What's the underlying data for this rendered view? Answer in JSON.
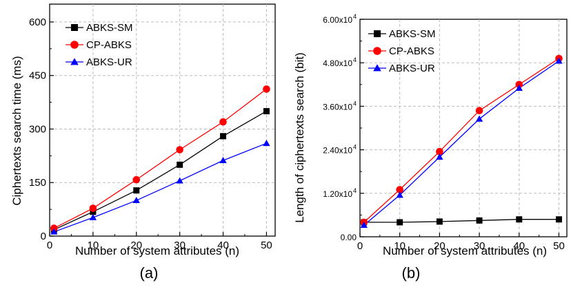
{
  "chart_data": [
    {
      "type": "line",
      "panel_label": "(a)",
      "xlabel": "Number of system attributes (n)",
      "ylabel": "Ciphertexts search time (ms)",
      "xlim": [
        0,
        52
      ],
      "ylim": [
        0,
        650
      ],
      "x_ticks": [
        {
          "value": 0,
          "label": "0"
        },
        {
          "value": 10,
          "label": "10"
        },
        {
          "value": 20,
          "label": "20"
        },
        {
          "value": 30,
          "label": "30"
        },
        {
          "value": 40,
          "label": "40"
        },
        {
          "value": 50,
          "label": "50"
        }
      ],
      "y_ticks": [
        {
          "value": 0,
          "label": "0"
        },
        {
          "value": 150,
          "label": "150"
        },
        {
          "value": 300,
          "label": "300"
        },
        {
          "value": 450,
          "label": "450"
        },
        {
          "value": 600,
          "label": "600"
        }
      ],
      "grid": true,
      "legend": "top-left",
      "x": [
        1,
        10,
        20,
        30,
        40,
        50
      ],
      "series": [
        {
          "name": "ABKS-SM",
          "color": "#000000",
          "marker": "square",
          "values": [
            18,
            68,
            128,
            200,
            280,
            350
          ]
        },
        {
          "name": "CP-ABKS",
          "color": "#ff0000",
          "marker": "circle",
          "values": [
            22,
            78,
            158,
            242,
            320,
            412
          ]
        },
        {
          "name": "ABKS-UR",
          "color": "#0000ff",
          "marker": "triangle",
          "values": [
            12,
            52,
            100,
            155,
            212,
            260
          ]
        }
      ]
    },
    {
      "type": "line",
      "panel_label": "(b)",
      "xlabel": "Number of system attributes (n)",
      "ylabel": "Length of ciphertexts search (bit)",
      "xlim": [
        0,
        52
      ],
      "ylim": [
        0,
        60000
      ],
      "x_ticks": [
        {
          "value": 0,
          "label": "0"
        },
        {
          "value": 10,
          "label": "10"
        },
        {
          "value": 20,
          "label": "20"
        },
        {
          "value": 30,
          "label": "30"
        },
        {
          "value": 40,
          "label": "40"
        },
        {
          "value": 50,
          "label": "50"
        }
      ],
      "y_ticks": [
        {
          "value": 0,
          "label": "0.00"
        },
        {
          "value": 12000,
          "label": "1.20x10",
          "exp": "4"
        },
        {
          "value": 24000,
          "label": "2.40x10",
          "exp": "4"
        },
        {
          "value": 36000,
          "label": "3.60x10",
          "exp": "4"
        },
        {
          "value": 48000,
          "label": "4.80x10",
          "exp": "4"
        },
        {
          "value": 60000,
          "label": "6.00x10",
          "exp": "4"
        }
      ],
      "grid": true,
      "legend": "top-right",
      "x": [
        1,
        10,
        20,
        30,
        40,
        50
      ],
      "series": [
        {
          "name": "ABKS-SM",
          "color": "#000000",
          "marker": "square",
          "values": [
            4000,
            4000,
            4200,
            4500,
            4800,
            4800
          ]
        },
        {
          "name": "CP-ABKS",
          "color": "#ff0000",
          "marker": "circle",
          "values": [
            4000,
            13000,
            23500,
            34800,
            42000,
            49200
          ]
        },
        {
          "name": "ABKS-UR",
          "color": "#0000ff",
          "marker": "triangle",
          "values": [
            3200,
            11500,
            22000,
            32500,
            41000,
            48500
          ]
        }
      ]
    }
  ]
}
